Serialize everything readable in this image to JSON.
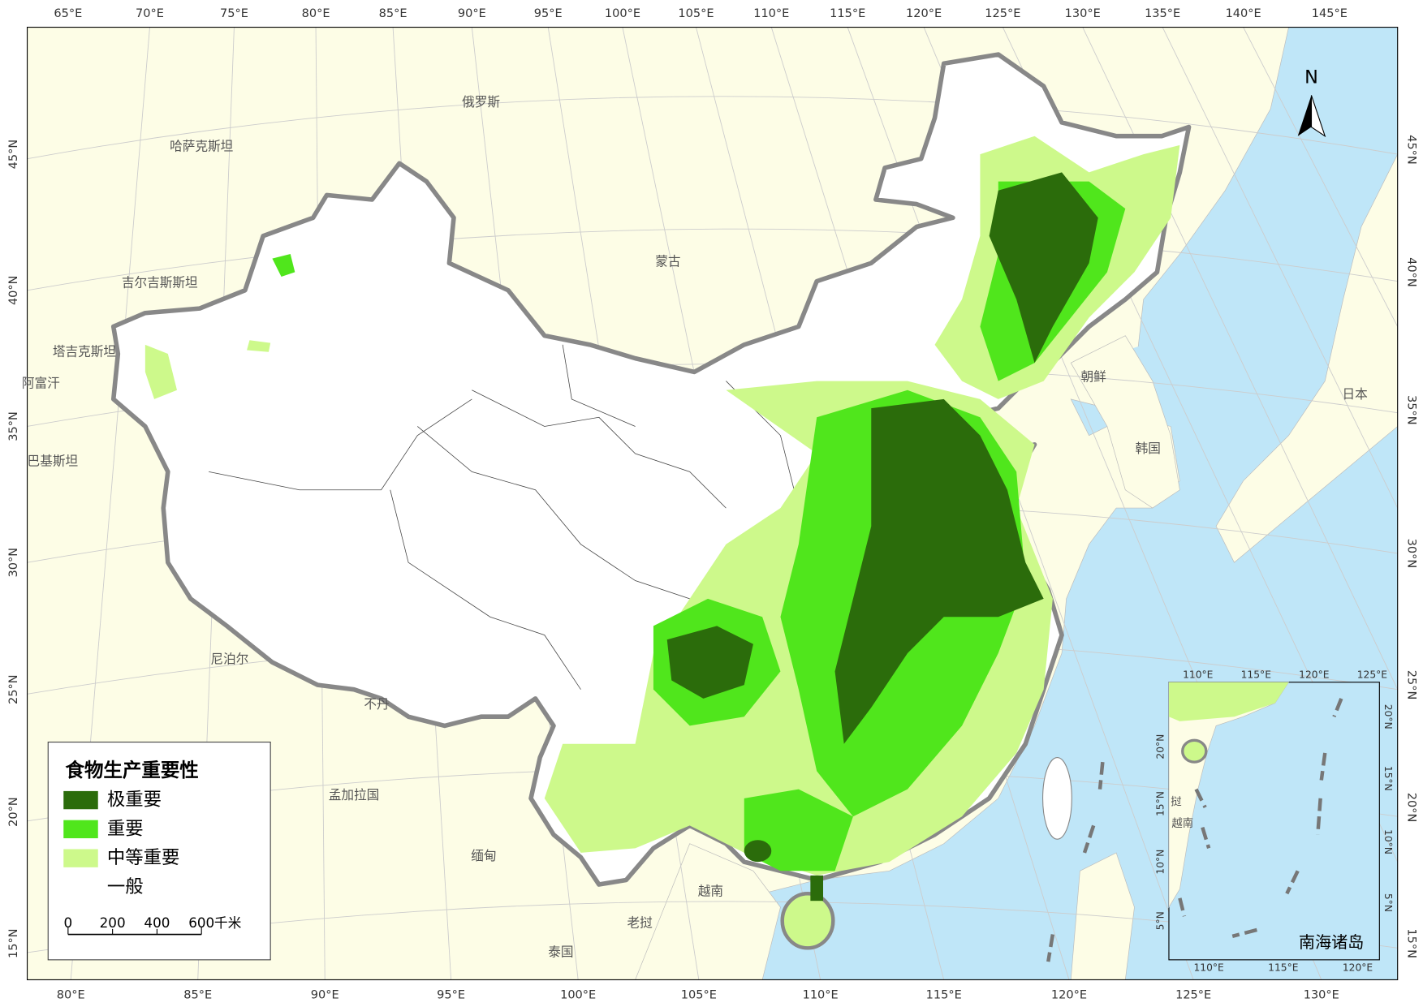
{
  "map": {
    "top_labels": [
      "65°E",
      "70°E",
      "75°E",
      "80°E",
      "85°E",
      "90°E",
      "95°E",
      "100°E",
      "105°E",
      "110°E",
      "115°E",
      "120°E",
      "125°E",
      "130°E",
      "135°E",
      "140°E",
      "145°E"
    ],
    "bottom_labels": [
      "80°E",
      "85°E",
      "90°E",
      "95°E",
      "100°E",
      "105°E",
      "110°E",
      "115°E",
      "120°E",
      "125°E",
      "130°E"
    ],
    "left_labels": [
      "45°N",
      "40°N",
      "35°N",
      "30°N",
      "25°N",
      "20°N",
      "15°N"
    ],
    "right_labels": [
      "45°N",
      "40°N",
      "35°N",
      "30°N",
      "25°N",
      "20°N",
      "15°N"
    ],
    "country_labels": [
      "俄罗斯",
      "哈萨克斯坦",
      "蒙古",
      "吉尔吉斯斯坦",
      "塔吉克斯坦",
      "阿富汗",
      "巴基斯坦",
      "尼泊尔",
      "不丹",
      "孟加拉国",
      "缅甸",
      "越南",
      "老挝",
      "泰国",
      "朝鲜",
      "韩国",
      "日本"
    ],
    "north": "N",
    "legend": {
      "title": "食物生产重要性",
      "items": [
        {
          "label": "极重要",
          "color": "#2b6c0b"
        },
        {
          "label": "重要",
          "color": "#50e61c"
        },
        {
          "label": "中等重要",
          "color": "#cdf98b"
        },
        {
          "label": "一般",
          "color": "#ffffff"
        }
      ]
    },
    "scale_bar": {
      "ticks": [
        "0",
        "200",
        "400",
        "600"
      ],
      "unit": "千米"
    },
    "inset": {
      "title": "南海诸岛",
      "top_labels": [
        "110°E",
        "115°E",
        "120°E",
        "125°E"
      ],
      "bottom_labels": [
        "110°E",
        "115°E",
        "120°E"
      ],
      "left_labels": [
        "20°N",
        "15°N",
        "10°N",
        "5°N"
      ],
      "right_labels": [
        "20°N",
        "15°N",
        "10°N",
        "5°N"
      ],
      "country_labels": [
        "挝",
        "越南"
      ]
    }
  }
}
